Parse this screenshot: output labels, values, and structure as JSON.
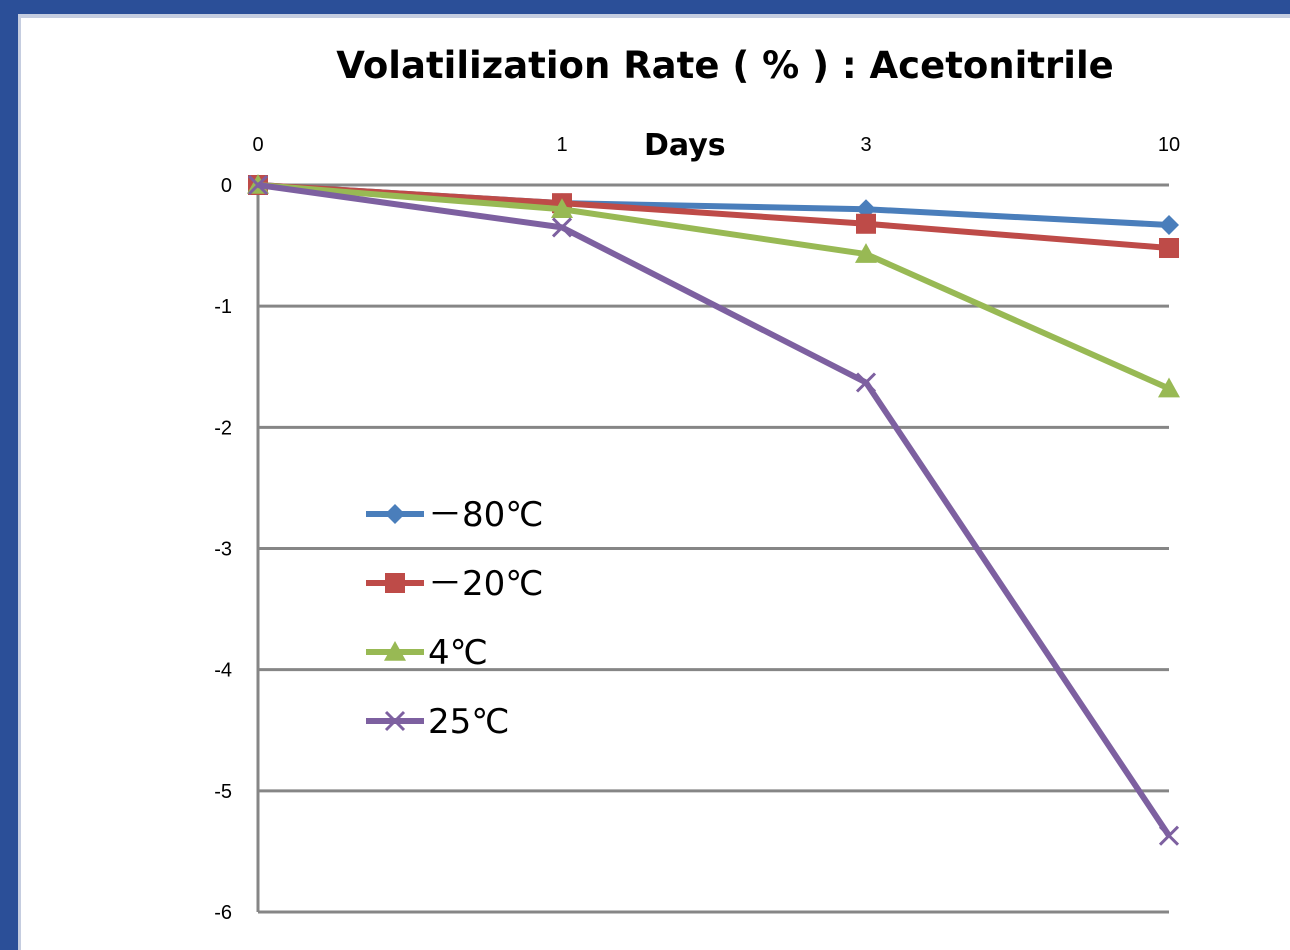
{
  "chart_data": {
    "type": "line",
    "title": "Volatilization Rate ( % ) : Acetonitrile",
    "xlabel": "Days",
    "ylabel": "",
    "categories": [
      "0",
      "1",
      "3",
      "10"
    ],
    "ylim": [
      -6,
      0
    ],
    "yticks": [
      "0",
      "-1",
      "-2",
      "-3",
      "-4",
      "-5",
      "-6"
    ],
    "grid": true,
    "legend_position": "left-middle",
    "series": [
      {
        "name": "－80℃",
        "color": "#4a7ebb",
        "marker": "diamond",
        "values": [
          0,
          -0.15,
          -0.2,
          -0.33
        ]
      },
      {
        "name": "－20℃",
        "color": "#be4b48",
        "marker": "square",
        "values": [
          0,
          -0.15,
          -0.32,
          -0.52
        ]
      },
      {
        "name": "4℃",
        "color": "#98b954",
        "marker": "triangle",
        "values": [
          0,
          -0.2,
          -0.57,
          -1.68
        ]
      },
      {
        "name": "25℃",
        "color": "#7d60a0",
        "marker": "x",
        "values": [
          0,
          -0.35,
          -1.63,
          -5.37
        ]
      }
    ]
  }
}
